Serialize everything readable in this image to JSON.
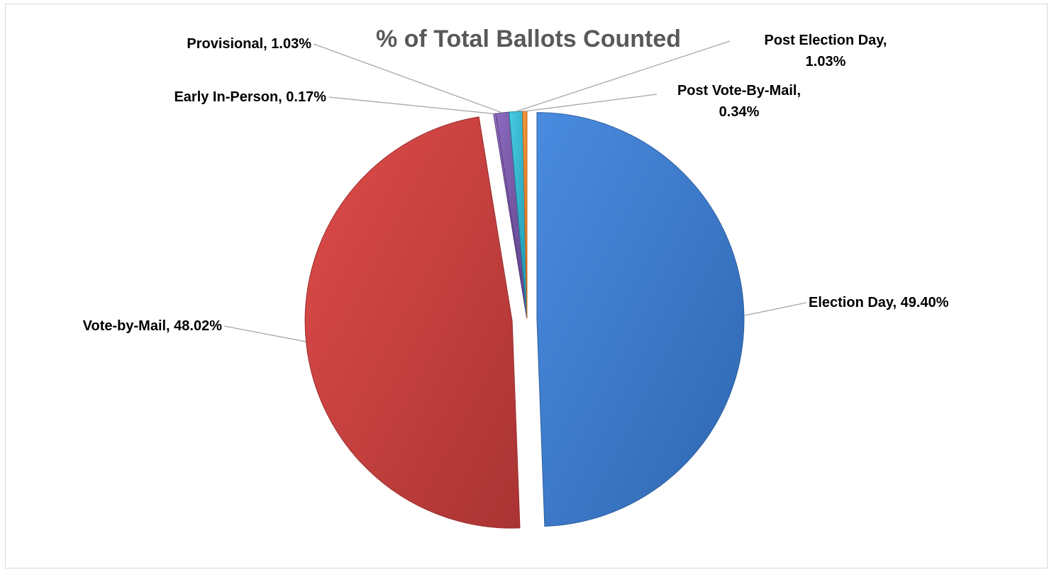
{
  "chart_data": {
    "type": "pie",
    "title": "% of Total Ballots Counted",
    "categories": [
      "Election Day",
      "Vote-by-Mail",
      "Early In-Person",
      "Provisional",
      "Post Election Day",
      "Post Vote-By-Mail"
    ],
    "values": [
      49.4,
      48.02,
      0.17,
      1.03,
      1.03,
      0.34
    ],
    "data_labels": [
      "Election Day, 49.40%",
      "Vote-by-Mail, 48.02%",
      "Early In-Person, 0.17%",
      "Provisional, 1.03%",
      "Post Election Day, 1.03%",
      "Post Vote-By-Mail, 0.34%"
    ],
    "colors": [
      "#3f7fd4",
      "#d04443",
      "#8064a2",
      "#7b5aa6",
      "#2fb5cf",
      "#f08a24"
    ],
    "legend": "none",
    "label_style": "outside with leader lines"
  }
}
